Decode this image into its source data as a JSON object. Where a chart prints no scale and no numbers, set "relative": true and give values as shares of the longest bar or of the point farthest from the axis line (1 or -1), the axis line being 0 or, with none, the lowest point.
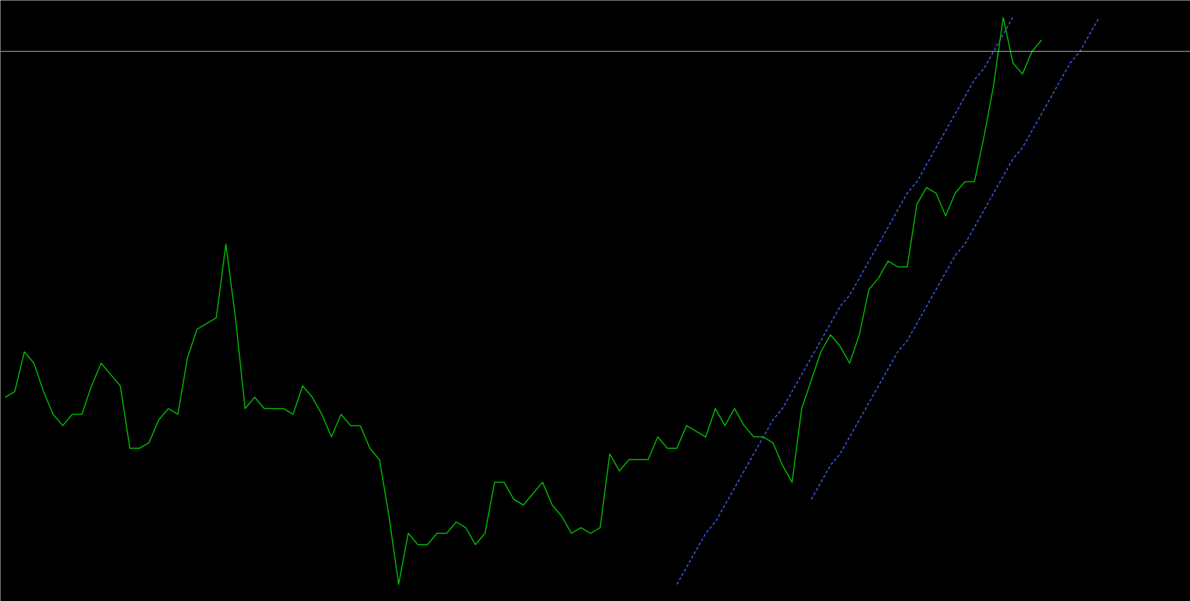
{
  "chart_data": {
    "type": "line",
    "relative": true,
    "tick_labels": false,
    "grid": false,
    "line_style": "solid",
    "marker": "none",
    "categories": [
      null,
      null,
      null,
      null,
      null,
      null,
      null,
      null,
      null,
      null,
      null,
      null,
      null,
      null,
      null,
      null,
      null,
      null,
      null,
      null,
      null,
      null,
      null,
      null,
      null,
      null,
      null,
      null,
      null,
      null,
      null,
      null,
      null,
      null,
      null,
      null,
      null,
      null,
      null,
      null,
      null,
      null,
      null,
      null,
      null,
      null,
      null,
      null,
      null,
      null,
      null,
      null,
      null,
      null,
      null,
      null,
      null,
      null,
      null,
      null,
      null,
      null,
      null,
      null,
      null,
      null,
      null,
      null,
      null,
      null,
      null,
      null,
      null,
      null,
      null,
      null,
      null,
      null,
      null,
      null,
      null,
      null,
      null,
      null,
      null,
      null,
      null,
      null,
      null,
      null,
      null,
      null,
      null,
      null,
      null,
      null,
      null,
      null,
      null,
      null,
      null,
      null,
      null,
      null,
      null,
      null,
      null,
      null,
      null,
      null,
      null,
      null,
      null,
      null,
      null,
      null,
      null,
      null,
      null,
      null,
      null,
      null,
      null,
      null
    ],
    "series": [
      {
        "color": "#00c000",
        "values": [
          0.33,
          0.34,
          0.41,
          0.39,
          0.34,
          0.3,
          0.28,
          0.3,
          0.3,
          0.35,
          0.39,
          0.37,
          0.35,
          0.24,
          0.24,
          0.25,
          0.29,
          0.31,
          0.3,
          0.4,
          0.45,
          0.46,
          0.47,
          0.6,
          0.47,
          0.31,
          0.33,
          0.31,
          0.31,
          0.31,
          0.3,
          0.35,
          0.33,
          0.3,
          0.26,
          0.3,
          0.28,
          0.28,
          0.24,
          0.22,
          0.12,
          0.0,
          0.09,
          0.07,
          0.07,
          0.09,
          0.09,
          0.11,
          0.1,
          0.07,
          0.09,
          0.18,
          0.18,
          0.15,
          0.14,
          0.16,
          0.18,
          0.14,
          0.12,
          0.09,
          0.1,
          0.09,
          0.1,
          0.23,
          0.2,
          0.22,
          0.22,
          0.22,
          0.26,
          0.24,
          0.24,
          0.28,
          0.27,
          0.26,
          0.31,
          0.28,
          0.31,
          0.28,
          0.26,
          0.26,
          0.25,
          0.21,
          0.18,
          0.31,
          0.36,
          0.41,
          0.44,
          0.42,
          0.39,
          0.44,
          0.52,
          0.54,
          0.57,
          0.56,
          0.56,
          0.67,
          0.7,
          0.69,
          0.65,
          0.69,
          0.71,
          0.71,
          0.79,
          0.88,
          1.0,
          0.92,
          0.9,
          0.94,
          0.96,
          null,
          null,
          null,
          null,
          null,
          null,
          null,
          null,
          null,
          null,
          null,
          null,
          null,
          null,
          null
        ]
      },
      {
        "type": "line",
        "color": "#4060ff",
        "line_style": "dashed",
        "values": [
          null,
          null,
          null,
          null,
          null,
          null,
          null,
          null,
          null,
          null,
          null,
          null,
          null,
          null,
          null,
          null,
          null,
          null,
          null,
          null,
          null,
          null,
          null,
          null,
          null,
          null,
          null,
          null,
          null,
          null,
          null,
          null,
          null,
          null,
          null,
          null,
          null,
          null,
          null,
          null,
          null,
          null,
          null,
          null,
          null,
          null,
          null,
          null,
          null,
          null,
          null,
          null,
          null,
          null,
          null,
          null,
          null,
          null,
          null,
          null,
          null,
          null,
          null,
          null,
          null,
          null,
          null,
          null,
          null,
          null,
          0.0,
          0.03,
          0.06,
          0.09,
          0.11,
          0.14,
          0.17,
          0.2,
          0.23,
          0.26,
          0.29,
          0.31,
          0.34,
          0.37,
          0.4,
          0.43,
          0.46,
          0.49,
          0.51,
          0.54,
          0.57,
          0.6,
          0.63,
          0.66,
          0.69,
          0.71,
          0.74,
          0.77,
          0.8,
          0.83,
          0.86,
          0.89,
          0.91,
          0.94,
          0.97,
          1.0,
          null,
          null,
          null,
          null,
          null,
          null,
          null,
          null,
          null,
          null,
          null,
          null,
          null,
          null,
          null,
          null,
          null,
          null
        ]
      },
      {
        "type": "line",
        "color": "#4060ff",
        "line_style": "dashed",
        "values": [
          null,
          null,
          null,
          null,
          null,
          null,
          null,
          null,
          null,
          null,
          null,
          null,
          null,
          null,
          null,
          null,
          null,
          null,
          null,
          null,
          null,
          null,
          null,
          null,
          null,
          null,
          null,
          null,
          null,
          null,
          null,
          null,
          null,
          null,
          null,
          null,
          null,
          null,
          null,
          null,
          null,
          null,
          null,
          null,
          null,
          null,
          null,
          null,
          null,
          null,
          null,
          null,
          null,
          null,
          null,
          null,
          null,
          null,
          null,
          null,
          null,
          null,
          null,
          null,
          null,
          null,
          null,
          null,
          null,
          null,
          null,
          null,
          null,
          null,
          null,
          null,
          null,
          null,
          null,
          null,
          null,
          null,
          null,
          null,
          0.15,
          0.18,
          0.21,
          0.23,
          0.26,
          0.29,
          0.32,
          0.35,
          0.38,
          0.41,
          0.43,
          0.46,
          0.49,
          0.52,
          0.55,
          0.58,
          0.6,
          0.63,
          0.66,
          0.69,
          0.72,
          0.75,
          0.77,
          0.8,
          0.83,
          0.86,
          0.89,
          0.92,
          0.94,
          0.97,
          1.0,
          null,
          null,
          null,
          null,
          null,
          null,
          null,
          null,
          null
        ]
      }
    ],
    "ref_lines": [
      {
        "axis": "y",
        "value": 0.94,
        "color": "#c0c0c0"
      }
    ]
  }
}
